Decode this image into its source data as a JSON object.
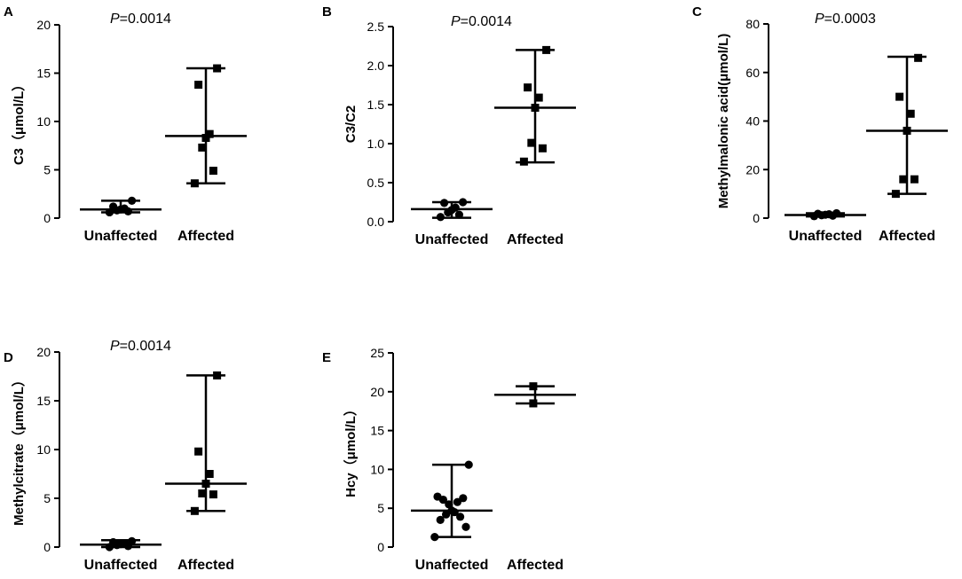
{
  "figure": {
    "font_color": "#000000",
    "background": "#ffffff"
  },
  "chart_data": [
    {
      "panel": "A",
      "type": "scatter",
      "p_label": "P",
      "p_value": "=0.0014",
      "ylabel": "C3（μmol/L）",
      "ylim": [
        0,
        20
      ],
      "yticks": [
        "0",
        "5",
        "10",
        "15",
        "20"
      ],
      "categories": [
        "Unaffected",
        "Affected"
      ],
      "series": [
        {
          "name": "Unaffected",
          "marker": "circle",
          "values": [
            0.6,
            0.7,
            0.8,
            0.9,
            1.0,
            1.2,
            1.8
          ],
          "median": 0.9,
          "range": [
            0.6,
            1.8
          ]
        },
        {
          "name": "Affected",
          "marker": "square",
          "values": [
            3.6,
            4.9,
            7.3,
            8.3,
            8.7,
            13.8,
            15.5
          ],
          "median": 8.5,
          "range": [
            3.6,
            15.5
          ]
        }
      ]
    },
    {
      "panel": "B",
      "type": "scatter",
      "p_label": "P",
      "p_value": "=0.0014",
      "ylabel": "C3/C2",
      "ylim": [
        0,
        2.5
      ],
      "yticks": [
        "0.0",
        "0.5",
        "1.0",
        "1.5",
        "2.0",
        "2.5"
      ],
      "categories": [
        "Unaffected",
        "Affected"
      ],
      "series": [
        {
          "name": "Unaffected",
          "marker": "circle",
          "values": [
            0.06,
            0.09,
            0.12,
            0.15,
            0.18,
            0.24,
            0.25
          ],
          "median": 0.16,
          "range": [
            0.05,
            0.25
          ]
        },
        {
          "name": "Affected",
          "marker": "square",
          "values": [
            0.77,
            0.94,
            1.01,
            1.46,
            1.59,
            1.72,
            2.2
          ],
          "median": 1.46,
          "range": [
            0.76,
            2.2
          ]
        }
      ]
    },
    {
      "panel": "C",
      "type": "scatter",
      "p_label": "P",
      "p_value": "=0.0003",
      "ylabel": "Methylmalonic acid(μmol/L)",
      "ylim": [
        0,
        80
      ],
      "yticks": [
        "0",
        "20",
        "40",
        "60",
        "80"
      ],
      "categories": [
        "Unaffected",
        "Affected"
      ],
      "series": [
        {
          "name": "Unaffected",
          "marker": "circle",
          "values": [
            0.8,
            1.0,
            1.2,
            1.4,
            1.6,
            1.8,
            2.0
          ],
          "median": 1.3,
          "range": [
            0.7,
            2.0
          ]
        },
        {
          "name": "Affected",
          "marker": "square",
          "values": [
            10,
            16,
            16,
            36,
            43,
            50,
            66
          ],
          "median": 36,
          "range": [
            10,
            66.5
          ]
        }
      ]
    },
    {
      "panel": "D",
      "type": "scatter",
      "p_label": "P",
      "p_value": "=0.0014",
      "ylabel": "Methylcitrate（μmol/L）",
      "ylim": [
        0,
        20
      ],
      "yticks": [
        "0",
        "5",
        "10",
        "15",
        "20"
      ],
      "categories": [
        "Unaffected",
        "Affected"
      ],
      "series": [
        {
          "name": "Unaffected",
          "marker": "circle",
          "values": [
            0.0,
            0.1,
            0.2,
            0.3,
            0.4,
            0.5,
            0.6
          ],
          "median": 0.25,
          "range": [
            0.0,
            0.7
          ]
        },
        {
          "name": "Affected",
          "marker": "square",
          "values": [
            3.7,
            5.4,
            5.5,
            6.5,
            7.5,
            9.8,
            17.6
          ],
          "median": 6.5,
          "range": [
            3.7,
            17.6
          ]
        }
      ]
    },
    {
      "panel": "E",
      "type": "scatter",
      "p_label": "",
      "p_value": "",
      "ylabel": "Hcy（μmol/L）",
      "ylim": [
        0,
        25
      ],
      "yticks": [
        "0",
        "5",
        "10",
        "15",
        "20",
        "25"
      ],
      "categories": [
        "Unaffected",
        "Affected"
      ],
      "series": [
        {
          "name": "Unaffected",
          "marker": "circle",
          "values": [
            1.3,
            2.6,
            3.5,
            3.9,
            4.2,
            4.5,
            4.7,
            5.5,
            5.8,
            6.1,
            6.3,
            6.5,
            10.6
          ],
          "median": 4.7,
          "range": [
            1.3,
            10.6
          ]
        },
        {
          "name": "Affected",
          "marker": "square",
          "values": [
            18.5,
            20.7
          ],
          "median": 19.6,
          "range": [
            18.5,
            20.7
          ]
        }
      ]
    }
  ]
}
